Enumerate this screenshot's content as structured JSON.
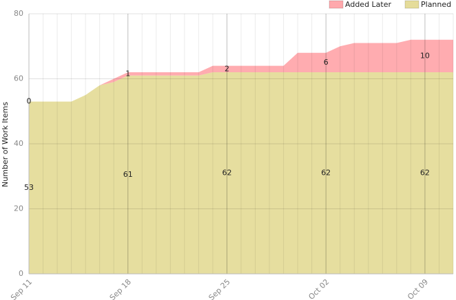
{
  "chart_data": {
    "type": "stacked_area",
    "y_label": "Number of Work Items",
    "categories": [
      "Sep 11",
      null,
      null,
      null,
      null,
      null,
      null,
      "Sep 18",
      null,
      null,
      null,
      null,
      null,
      null,
      "Sep 25",
      null,
      null,
      null,
      null,
      null,
      null,
      "Oct 02",
      null,
      null,
      null,
      null,
      null,
      null,
      "Oct 09",
      null,
      null
    ],
    "series": [
      {
        "name": "Added Later",
        "color": "#ffa8ac",
        "values": [
          0,
          0,
          0,
          0,
          0,
          0,
          1,
          1,
          1,
          1,
          1,
          1,
          1,
          2,
          2,
          2,
          2,
          2,
          2,
          6,
          6,
          6,
          8,
          9,
          9,
          9,
          9,
          10,
          10,
          10,
          10
        ]
      },
      {
        "name": "Planned",
        "color": "#e5dc9a",
        "values": [
          53,
          53,
          53,
          53,
          55,
          58,
          59,
          61,
          61,
          61,
          61,
          61,
          61,
          62,
          62,
          62,
          62,
          62,
          62,
          62,
          62,
          62,
          62,
          62,
          62,
          62,
          62,
          62,
          62,
          62,
          62
        ]
      }
    ],
    "ylim": [
      0,
      80
    ],
    "yticks": [
      0,
      20,
      40,
      60,
      80
    ],
    "grid": true,
    "legend": "top-right"
  }
}
